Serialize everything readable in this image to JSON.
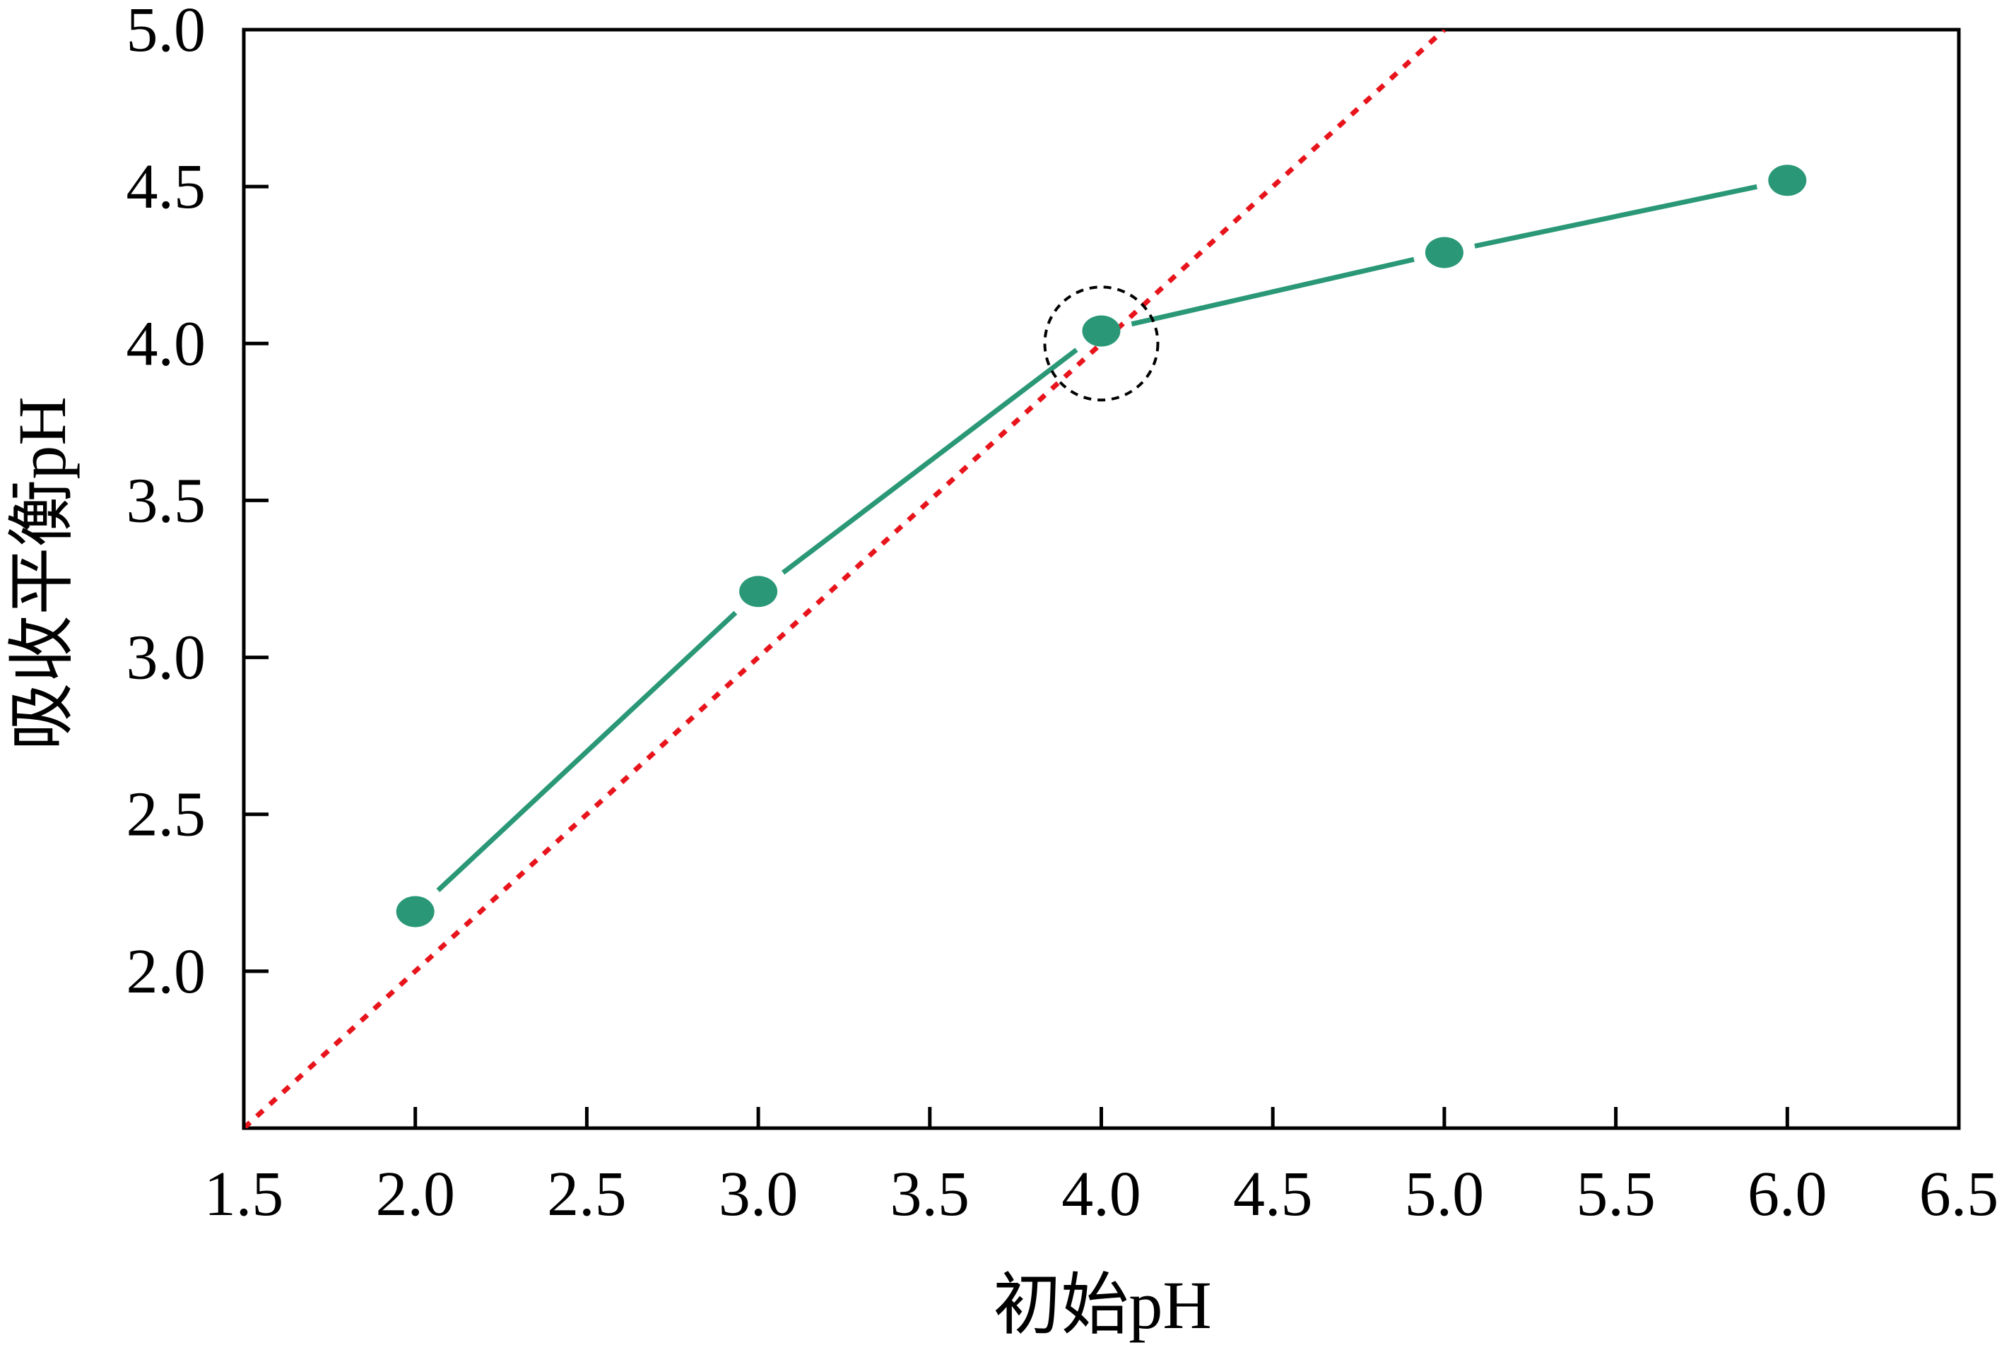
{
  "chart_data": {
    "type": "line",
    "title": "",
    "xlabel": "初始pH",
    "ylabel": "吸收平衡pH",
    "xlim": [
      1.5,
      6.5
    ],
    "ylim": [
      1.5,
      5.0
    ],
    "x_ticks": [
      1.5,
      2.0,
      2.5,
      3.0,
      3.5,
      4.0,
      4.5,
      5.0,
      5.5,
      6.0,
      6.5
    ],
    "x_tick_labels": [
      "1.5",
      "2.0",
      "2.5",
      "3.0",
      "3.5",
      "4.0",
      "4.5",
      "5.0",
      "5.5",
      "6.0",
      "6.5"
    ],
    "y_ticks": [
      2.0,
      2.5,
      3.0,
      3.5,
      4.0,
      4.5,
      5.0
    ],
    "y_tick_labels": [
      "2.0",
      "2.5",
      "3.0",
      "3.5",
      "4.0",
      "4.5",
      "5.0"
    ],
    "grid": false,
    "legend": "none",
    "series": [
      {
        "x": [
          2.0,
          3.0,
          4.0,
          5.0,
          6.0
        ],
        "y": [
          2.19,
          3.21,
          4.04,
          4.29,
          4.52
        ],
        "color": "#2a9876",
        "style": "solid line with filled circular markers"
      }
    ],
    "reference_line": {
      "x": [
        1.5,
        5.0
      ],
      "y": [
        1.5,
        5.0
      ],
      "color": "#e8141c",
      "style": "dotted"
    },
    "annotation": {
      "type": "dashed-circle",
      "center": [
        4.0,
        4.0
      ],
      "color": "#000000"
    }
  }
}
